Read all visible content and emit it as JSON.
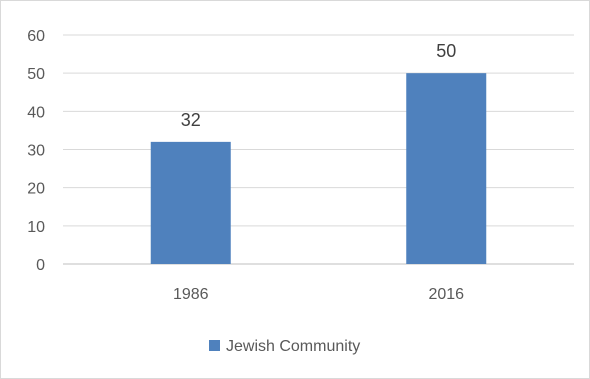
{
  "chart_data": {
    "type": "bar",
    "categories": [
      "1986",
      "2016"
    ],
    "series": [
      {
        "name": "Jewish Community",
        "values": [
          32,
          50
        ],
        "color": "#4f81bd"
      }
    ],
    "ylim": [
      0,
      60
    ],
    "yticks": [
      0,
      10,
      20,
      30,
      40,
      50,
      60
    ],
    "grid": true,
    "legend": "bottom",
    "data_labels": true,
    "title": "",
    "xlabel": "",
    "ylabel": ""
  }
}
